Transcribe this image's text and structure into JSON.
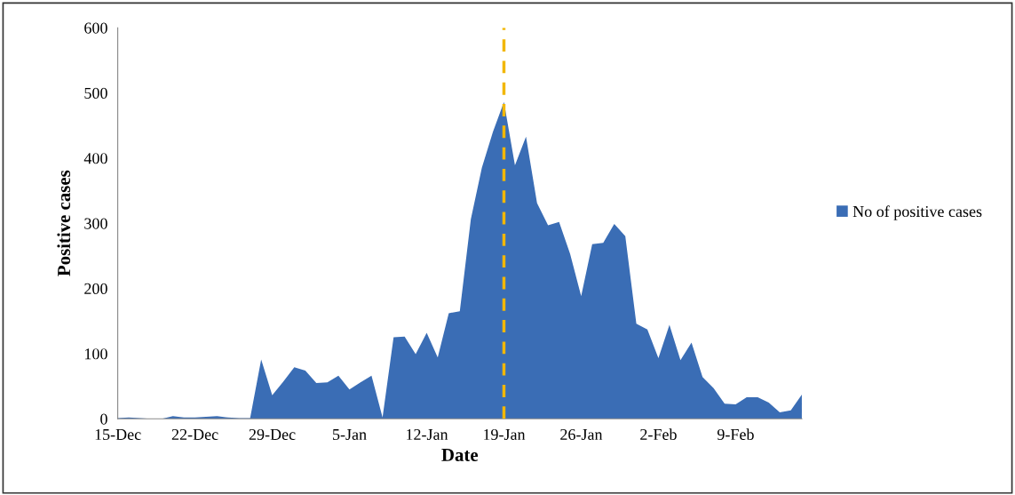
{
  "chart_data": {
    "type": "area",
    "xlabel": "Date",
    "ylabel": "Positive cases",
    "categories": [
      "15-Dec",
      null,
      null,
      null,
      null,
      null,
      null,
      "22-Dec",
      null,
      null,
      null,
      null,
      null,
      null,
      "29-Dec",
      null,
      null,
      null,
      null,
      null,
      null,
      "5-Jan",
      null,
      null,
      null,
      null,
      null,
      null,
      "12-Jan",
      null,
      null,
      null,
      null,
      null,
      null,
      "19-Jan",
      null,
      null,
      null,
      null,
      null,
      null,
      "26-Jan",
      null,
      null,
      null,
      null,
      null,
      null,
      "2-Feb",
      null,
      null,
      null,
      null,
      null,
      null,
      "9-Feb",
      null,
      null,
      null,
      null,
      null,
      null
    ],
    "series": [
      {
        "name": "No of positive cases",
        "color": "#3a6db5",
        "values": [
          1,
          2,
          1,
          0,
          0,
          4,
          2,
          2,
          3,
          4,
          2,
          1,
          1,
          91,
          36,
          57,
          79,
          74,
          55,
          56,
          66,
          45,
          56,
          66,
          2,
          125,
          126,
          99,
          132,
          94,
          162,
          165,
          306,
          385,
          440,
          486,
          389,
          433,
          331,
          297,
          302,
          253,
          188,
          268,
          270,
          299,
          280,
          146,
          137,
          93,
          144,
          90,
          117,
          64,
          47,
          23,
          22,
          33,
          33,
          25,
          10,
          13,
          37
        ]
      }
    ],
    "ylim": [
      0,
      600
    ],
    "yticks": [
      0,
      100,
      200,
      300,
      400,
      500,
      600
    ],
    "ref_lines": [
      {
        "axis": "x",
        "value": "19-Jan",
        "color": "#f2b705",
        "line_style": "dashed"
      }
    ],
    "grid": false,
    "legend": "right"
  }
}
